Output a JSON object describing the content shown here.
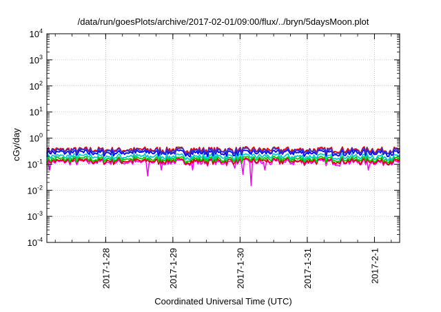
{
  "chart_data": {
    "type": "line",
    "title": "/data/run/goesPlots/archive/2017-02-01/09:00/flux/../bryn/5daysMoon.plot",
    "xlabel": "Coordinated Universal Time (UTC)",
    "ylabel": "cGy/day",
    "y_scale": "log",
    "ylim": [
      0.0001,
      10000
    ],
    "y_ticks": [
      {
        "base": "10",
        "exp": "-4",
        "value": 0.0001
      },
      {
        "base": "10",
        "exp": "-3",
        "value": 0.001
      },
      {
        "base": "10",
        "exp": "-2",
        "value": 0.01
      },
      {
        "base": "10",
        "exp": "-1",
        "value": 0.1
      },
      {
        "base": "10",
        "exp": "0",
        "value": 1
      },
      {
        "base": "10",
        "exp": "1",
        "value": 10
      },
      {
        "base": "10",
        "exp": "2",
        "value": 100
      },
      {
        "base": "10",
        "exp": "3",
        "value": 1000
      },
      {
        "base": "10",
        "exp": "4",
        "value": 10000
      }
    ],
    "xlim": [
      "2017-01-27 03:00",
      "2017-02-01 09:00"
    ],
    "x_ticks": [
      {
        "label": "2017-1-28",
        "value": "2017-01-28 00:00"
      },
      {
        "label": "2017-1-29",
        "value": "2017-01-29 00:00"
      },
      {
        "label": "2017-1-30",
        "value": "2017-01-30 00:00"
      },
      {
        "label": "2017-1-31",
        "value": "2017-01-31 00:00"
      },
      {
        "label": "2017-2-1",
        "value": "2017-02-01 00:00"
      }
    ],
    "grid": true,
    "series": [
      {
        "color": "#ff00ff",
        "base": 0.12,
        "dips": [
          [
            "2017-01-27 04:00",
            0.06
          ],
          [
            "2017-01-28 15:00",
            0.035
          ],
          [
            "2017-01-28 20:00",
            0.06
          ],
          [
            "2017-01-29 07:00",
            0.06
          ],
          [
            "2017-01-30 04:00",
            0.015
          ],
          [
            "2017-01-30 01:00",
            0.04
          ],
          [
            "2017-01-30 09:00",
            0.06
          ],
          [
            "2017-01-31 22:00",
            0.06
          ],
          [
            "2017-01-29 22:00",
            0.07
          ]
        ]
      },
      {
        "color": "#dd0000",
        "base": 0.135
      },
      {
        "color": "#00cc00",
        "base": 0.16
      },
      {
        "color": "#00cccc",
        "base": 0.2
      },
      {
        "color": "#0000ff",
        "base": 0.28
      },
      {
        "color": "#ff0000",
        "base": 0.36
      },
      {
        "color": "#3333cc",
        "base": 0.33
      }
    ]
  }
}
